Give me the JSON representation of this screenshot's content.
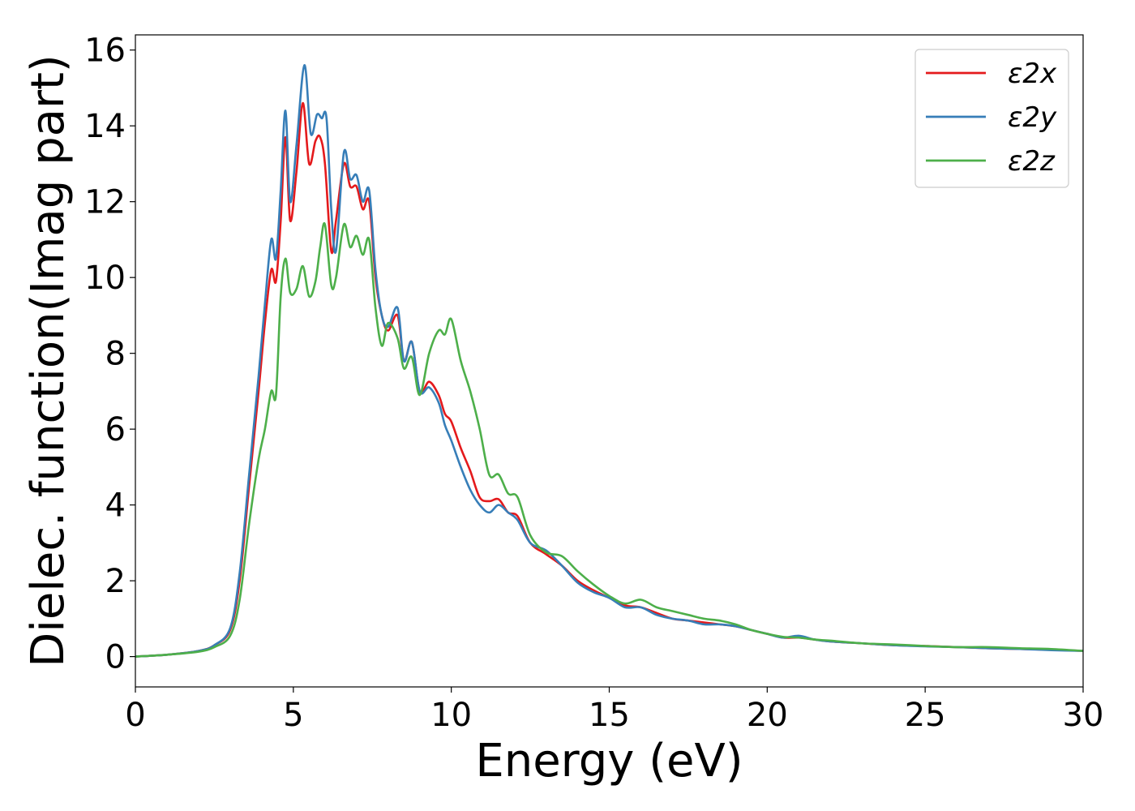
{
  "chart_data": {
    "type": "line",
    "title": "",
    "xlabel": "Energy (eV)",
    "ylabel": "Dielec. function(Imag part)",
    "xlim": [
      0,
      30
    ],
    "ylim": [
      -0.8,
      16.4
    ],
    "xticks": [
      0,
      5,
      10,
      15,
      20,
      25,
      30
    ],
    "yticks": [
      0,
      2,
      4,
      6,
      8,
      10,
      12,
      14,
      16
    ],
    "grid": false,
    "legend": "top-right",
    "series": [
      {
        "name": "ε2x",
        "color": "#e41a1c",
        "x": [
          0,
          1,
          2,
          2.5,
          3,
          3.3,
          3.6,
          3.9,
          4.1,
          4.3,
          4.45,
          4.6,
          4.75,
          4.9,
          5.1,
          5.3,
          5.5,
          5.7,
          5.85,
          6.0,
          6.2,
          6.35,
          6.6,
          6.8,
          7.0,
          7.2,
          7.4,
          7.6,
          7.8,
          8.0,
          8.3,
          8.5,
          8.75,
          9.0,
          9.3,
          9.6,
          9.8,
          10.0,
          10.3,
          10.6,
          10.9,
          11.2,
          11.5,
          11.8,
          12.1,
          12.5,
          13,
          13.5,
          14,
          14.5,
          15,
          15.5,
          16,
          16.5,
          17,
          17.5,
          18,
          18.5,
          19,
          19.5,
          20,
          20.5,
          21,
          21.5,
          22,
          23,
          24,
          25,
          26,
          27,
          28,
          29,
          30
        ],
        "y": [
          0,
          0.05,
          0.15,
          0.3,
          0.7,
          2.0,
          4.5,
          7.0,
          8.8,
          10.2,
          9.9,
          11.5,
          13.7,
          11.5,
          12.8,
          14.6,
          13.0,
          13.6,
          13.7,
          13.0,
          10.7,
          11.5,
          13.0,
          12.4,
          12.4,
          11.8,
          12.0,
          10.0,
          9.0,
          8.6,
          9.0,
          7.8,
          8.3,
          7.0,
          7.25,
          6.9,
          6.4,
          6.2,
          5.5,
          4.9,
          4.2,
          4.1,
          4.15,
          3.8,
          3.7,
          3.0,
          2.7,
          2.4,
          2.0,
          1.75,
          1.55,
          1.35,
          1.3,
          1.15,
          1.0,
          0.95,
          0.9,
          0.85,
          0.8,
          0.7,
          0.6,
          0.5,
          0.5,
          0.45,
          0.4,
          0.35,
          0.3,
          0.28,
          0.25,
          0.22,
          0.2,
          0.18,
          0.15
        ]
      },
      {
        "name": "ε2y",
        "color": "#377eb8",
        "x": [
          0,
          1,
          2,
          2.5,
          3,
          3.3,
          3.6,
          3.9,
          4.1,
          4.3,
          4.45,
          4.6,
          4.75,
          4.9,
          5.1,
          5.35,
          5.55,
          5.75,
          5.9,
          6.05,
          6.2,
          6.35,
          6.6,
          6.8,
          7.0,
          7.2,
          7.4,
          7.6,
          7.8,
          8.0,
          8.3,
          8.5,
          8.75,
          9.0,
          9.3,
          9.6,
          9.8,
          10.0,
          10.3,
          10.6,
          10.9,
          11.2,
          11.5,
          11.8,
          12.1,
          12.5,
          13,
          13.5,
          14,
          14.5,
          15,
          15.5,
          16,
          16.5,
          17,
          17.5,
          18,
          18.5,
          19,
          19.5,
          20,
          20.5,
          21,
          21.5,
          22,
          23,
          24,
          25,
          26,
          27,
          28,
          29,
          30
        ],
        "y": [
          0,
          0.05,
          0.15,
          0.3,
          0.75,
          2.2,
          4.8,
          7.4,
          9.3,
          11.0,
          10.5,
          12.3,
          14.4,
          12.0,
          13.5,
          15.6,
          13.8,
          14.3,
          14.2,
          14.2,
          11.8,
          10.7,
          13.3,
          12.6,
          12.7,
          12.0,
          12.3,
          10.2,
          9.0,
          8.7,
          9.2,
          7.8,
          8.3,
          7.0,
          7.1,
          6.7,
          6.1,
          5.7,
          5.0,
          4.4,
          4.0,
          3.8,
          4.0,
          3.8,
          3.6,
          3.0,
          2.8,
          2.4,
          1.95,
          1.7,
          1.55,
          1.3,
          1.3,
          1.1,
          1.0,
          0.95,
          0.85,
          0.85,
          0.8,
          0.7,
          0.6,
          0.5,
          0.55,
          0.45,
          0.4,
          0.35,
          0.3,
          0.27,
          0.25,
          0.22,
          0.2,
          0.17,
          0.15
        ]
      },
      {
        "name": "ε2z",
        "color": "#4daf4a",
        "x": [
          0,
          1,
          2,
          2.5,
          3,
          3.3,
          3.6,
          3.9,
          4.1,
          4.3,
          4.45,
          4.6,
          4.75,
          4.9,
          5.1,
          5.3,
          5.5,
          5.7,
          5.85,
          6.0,
          6.2,
          6.35,
          6.6,
          6.8,
          7.0,
          7.2,
          7.4,
          7.6,
          7.8,
          8.0,
          8.3,
          8.5,
          8.75,
          9.0,
          9.3,
          9.6,
          9.8,
          10.0,
          10.3,
          10.6,
          10.9,
          11.2,
          11.5,
          11.8,
          12.1,
          12.5,
          13,
          13.5,
          14,
          14.5,
          15,
          15.5,
          16,
          16.5,
          17,
          17.5,
          18,
          18.5,
          19,
          19.5,
          20,
          20.5,
          21,
          21.5,
          22,
          23,
          24,
          25,
          26,
          27,
          28,
          29,
          30
        ],
        "y": [
          0,
          0.05,
          0.13,
          0.25,
          0.55,
          1.5,
          3.5,
          5.2,
          6.0,
          7.0,
          6.9,
          9.5,
          10.5,
          9.6,
          9.7,
          10.3,
          9.5,
          9.9,
          10.8,
          11.4,
          9.8,
          10.0,
          11.4,
          10.8,
          11.1,
          10.6,
          11.0,
          9.2,
          8.2,
          8.8,
          8.4,
          7.6,
          7.9,
          6.9,
          8.0,
          8.6,
          8.5,
          8.9,
          7.8,
          7.0,
          6.0,
          4.8,
          4.8,
          4.3,
          4.2,
          3.2,
          2.75,
          2.65,
          2.25,
          1.9,
          1.6,
          1.4,
          1.5,
          1.3,
          1.2,
          1.1,
          1.0,
          0.95,
          0.85,
          0.7,
          0.6,
          0.52,
          0.5,
          0.45,
          0.42,
          0.35,
          0.32,
          0.28,
          0.25,
          0.25,
          0.22,
          0.2,
          0.15
        ]
      }
    ]
  }
}
